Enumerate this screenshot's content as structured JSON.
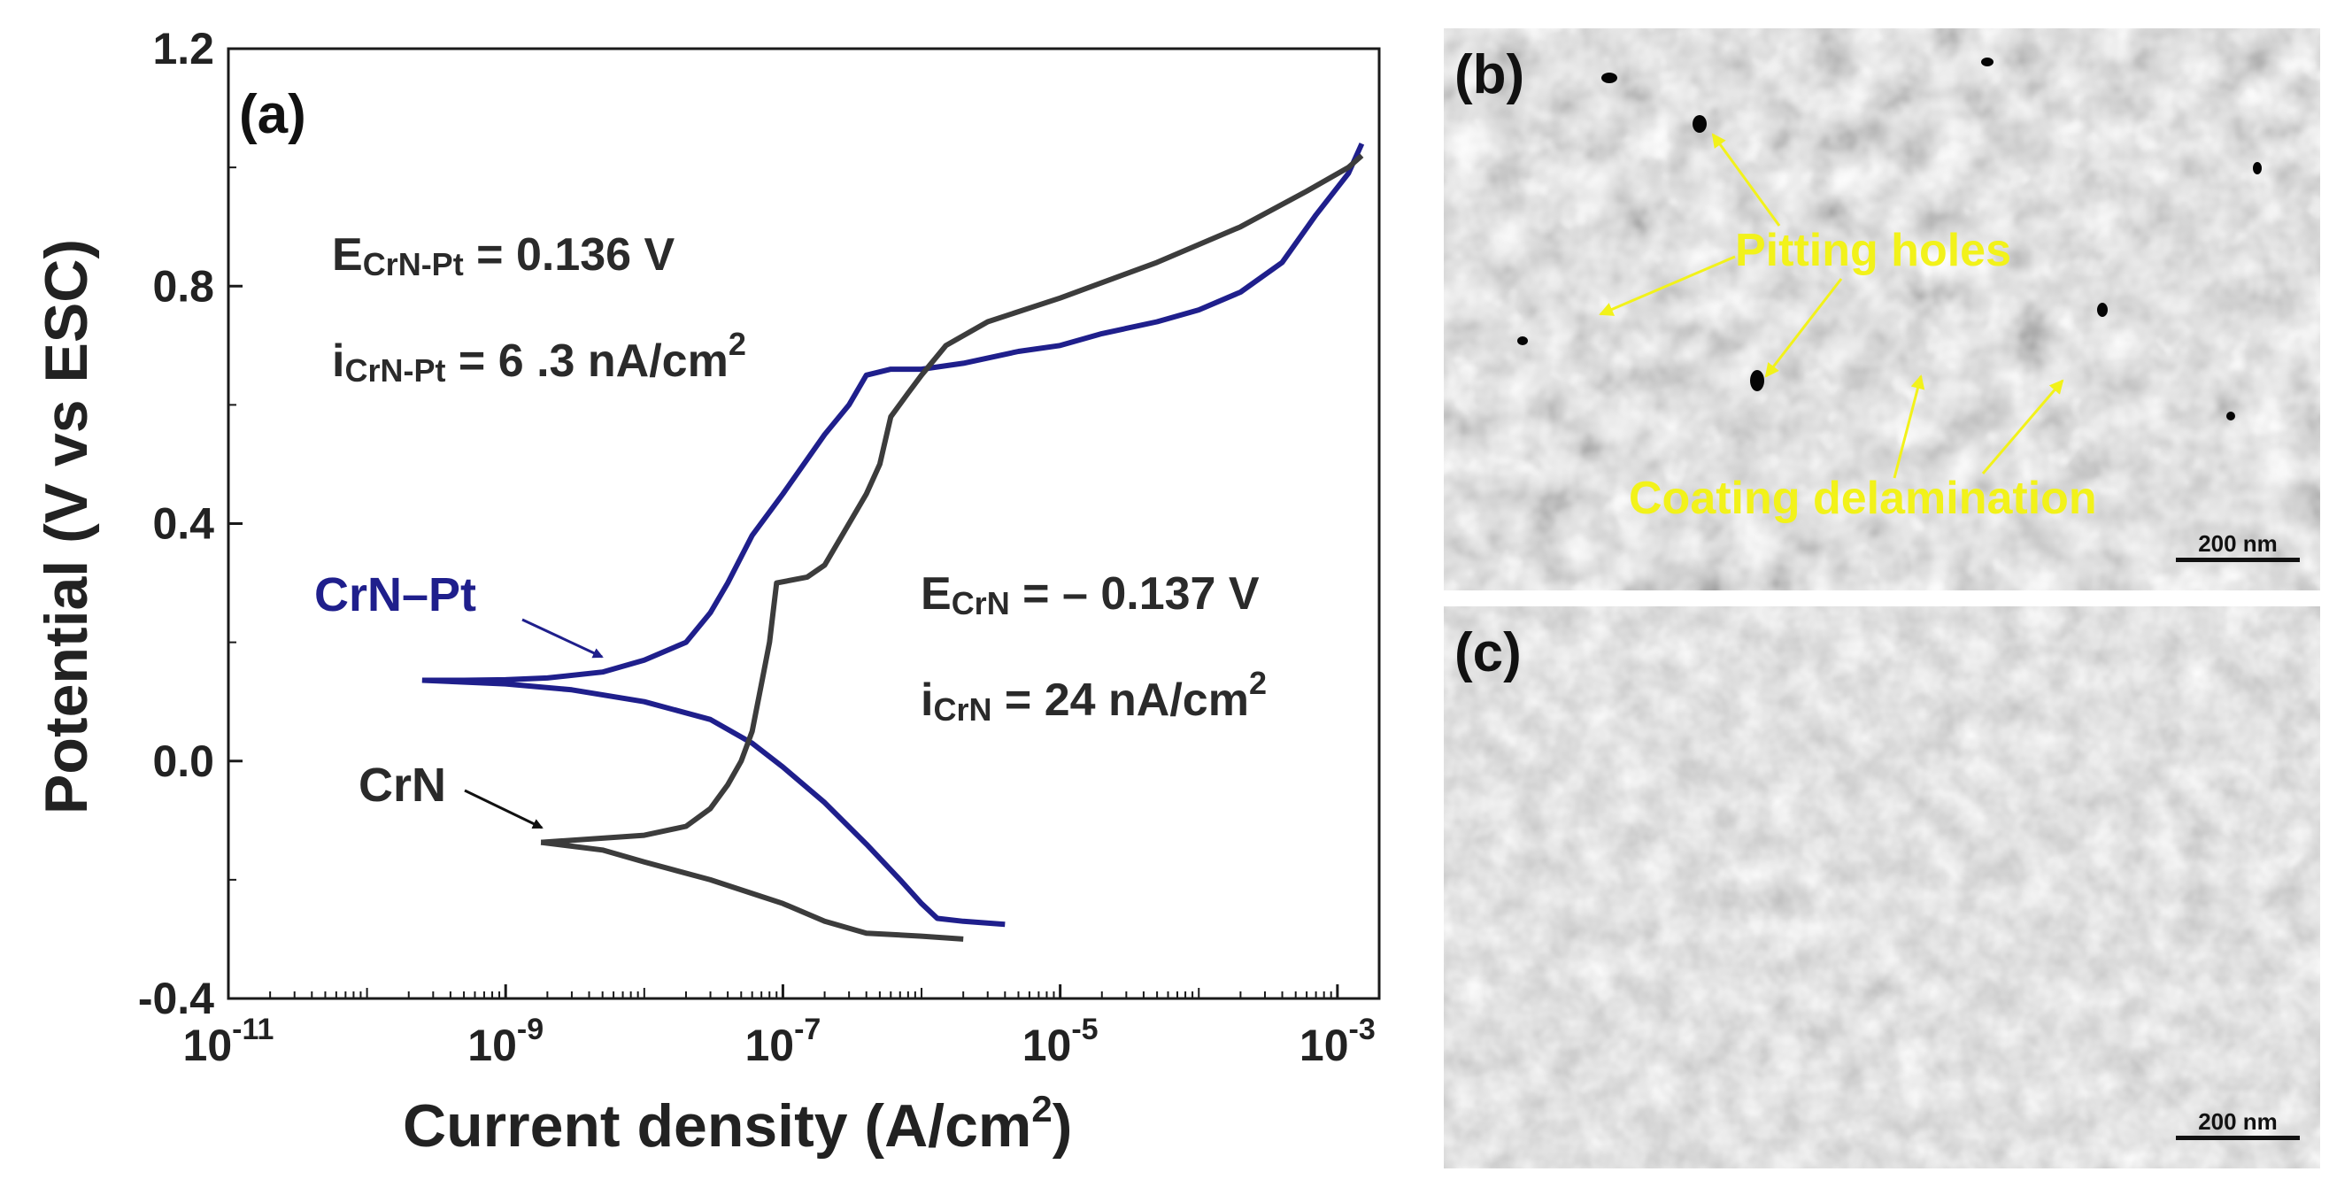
{
  "panels": {
    "a": "(a)",
    "b": "(b)",
    "c": "(c)"
  },
  "chart_data": {
    "type": "line",
    "title": "",
    "xlabel": "Current density (A/cm",
    "xlabel_sup": "2",
    "xlabel_close": ")",
    "ylabel": "Potential (V vs ESC)",
    "xscale": "log",
    "xlim": [
      1e-11,
      0.002
    ],
    "ylim": [
      -0.4,
      1.2
    ],
    "x_ticks": [
      {
        "value": 1e-11,
        "base": "10",
        "exp": "-11"
      },
      {
        "value": 1e-09,
        "base": "10",
        "exp": "-9"
      },
      {
        "value": 1e-07,
        "base": "10",
        "exp": "-7"
      },
      {
        "value": 1e-05,
        "base": "10",
        "exp": "-5"
      },
      {
        "value": 0.001,
        "base": "10",
        "exp": "-3"
      }
    ],
    "y_ticks": [
      {
        "value": -0.4,
        "label": "-0.4"
      },
      {
        "value": 0.0,
        "label": "0.0"
      },
      {
        "value": 0.4,
        "label": "0.4"
      },
      {
        "value": 0.8,
        "label": "0.8"
      },
      {
        "value": 1.2,
        "label": "1.2"
      }
    ],
    "series": [
      {
        "name": "CrN–Pt",
        "color": "#1f1f8c",
        "points": [
          [
            2.5e-10,
            0.136
          ],
          [
            5e-10,
            0.136
          ],
          [
            1e-09,
            0.137
          ],
          [
            2e-09,
            0.14
          ],
          [
            5e-09,
            0.15
          ],
          [
            1e-08,
            0.17
          ],
          [
            2e-08,
            0.2
          ],
          [
            3e-08,
            0.25
          ],
          [
            4e-08,
            0.3
          ],
          [
            6e-08,
            0.38
          ],
          [
            1e-07,
            0.45
          ],
          [
            2e-07,
            0.55
          ],
          [
            3e-07,
            0.6
          ],
          [
            4e-07,
            0.65
          ],
          [
            6e-07,
            0.66
          ],
          [
            1e-06,
            0.66
          ],
          [
            2e-06,
            0.67
          ],
          [
            5e-06,
            0.69
          ],
          [
            1e-05,
            0.7
          ],
          [
            2e-05,
            0.72
          ],
          [
            5e-05,
            0.74
          ],
          [
            0.0001,
            0.76
          ],
          [
            0.0002,
            0.79
          ],
          [
            0.0004,
            0.84
          ],
          [
            0.0007,
            0.92
          ],
          [
            0.0012,
            0.99
          ],
          [
            0.0015,
            1.04
          ]
        ],
        "cathodic_points": [
          [
            2.5e-10,
            0.136
          ],
          [
            1e-09,
            0.13
          ],
          [
            3e-09,
            0.12
          ],
          [
            1e-08,
            0.1
          ],
          [
            3e-08,
            0.07
          ],
          [
            6e-08,
            0.03
          ],
          [
            1e-07,
            -0.01
          ],
          [
            2e-07,
            -0.07
          ],
          [
            4e-07,
            -0.14
          ],
          [
            7e-07,
            -0.2
          ],
          [
            1e-06,
            -0.24
          ],
          [
            1.3e-06,
            -0.265
          ],
          [
            2e-06,
            -0.27
          ],
          [
            4e-06,
            -0.275
          ]
        ]
      },
      {
        "name": "CrN",
        "color": "#3c3c3c",
        "points": [
          [
            1.8e-09,
            -0.137
          ],
          [
            5e-09,
            -0.13
          ],
          [
            1e-08,
            -0.125
          ],
          [
            2e-08,
            -0.11
          ],
          [
            3e-08,
            -0.08
          ],
          [
            4e-08,
            -0.04
          ],
          [
            5e-08,
            0.0
          ],
          [
            6e-08,
            0.05
          ],
          [
            7e-08,
            0.13
          ],
          [
            8e-08,
            0.2
          ],
          [
            9e-08,
            0.3
          ],
          [
            1.5e-07,
            0.31
          ],
          [
            2e-07,
            0.33
          ],
          [
            3e-07,
            0.4
          ],
          [
            4e-07,
            0.45
          ],
          [
            5e-07,
            0.5
          ],
          [
            6e-07,
            0.58
          ],
          [
            8e-07,
            0.62
          ],
          [
            1e-06,
            0.65
          ],
          [
            1.5e-06,
            0.7
          ],
          [
            3e-06,
            0.74
          ],
          [
            1e-05,
            0.78
          ],
          [
            5e-05,
            0.84
          ],
          [
            0.0002,
            0.9
          ],
          [
            0.0006,
            0.96
          ],
          [
            0.0012,
            1.0
          ],
          [
            0.0015,
            1.02
          ]
        ],
        "cathodic_points": [
          [
            1.8e-09,
            -0.137
          ],
          [
            5e-09,
            -0.15
          ],
          [
            1e-08,
            -0.17
          ],
          [
            3e-08,
            -0.2
          ],
          [
            1e-07,
            -0.24
          ],
          [
            2e-07,
            -0.27
          ],
          [
            4e-07,
            -0.29
          ],
          [
            1e-06,
            -0.295
          ],
          [
            2e-06,
            -0.3
          ]
        ]
      }
    ],
    "annotations": {
      "e_crnpt": {
        "main": "E",
        "sub": "CrN-Pt",
        "tail": " =  0.136 V"
      },
      "i_crnpt": {
        "main": "i",
        "sub": "CrN-Pt",
        "tail": " = 6 .3 nA/cm",
        "sup": "2"
      },
      "e_crn": {
        "main": "E",
        "sub": "CrN",
        "tail": " = – 0.137 V"
      },
      "i_crn": {
        "main": "i",
        "sub": "CrN",
        "tail": " = 24 nA/cm",
        "sup": "2"
      }
    }
  },
  "sem_b": {
    "label_pitting": "Pitting holes",
    "label_delamination": "Coating delamination",
    "scalebar": "200 nm"
  },
  "sem_c": {
    "scalebar": "200 nm"
  }
}
